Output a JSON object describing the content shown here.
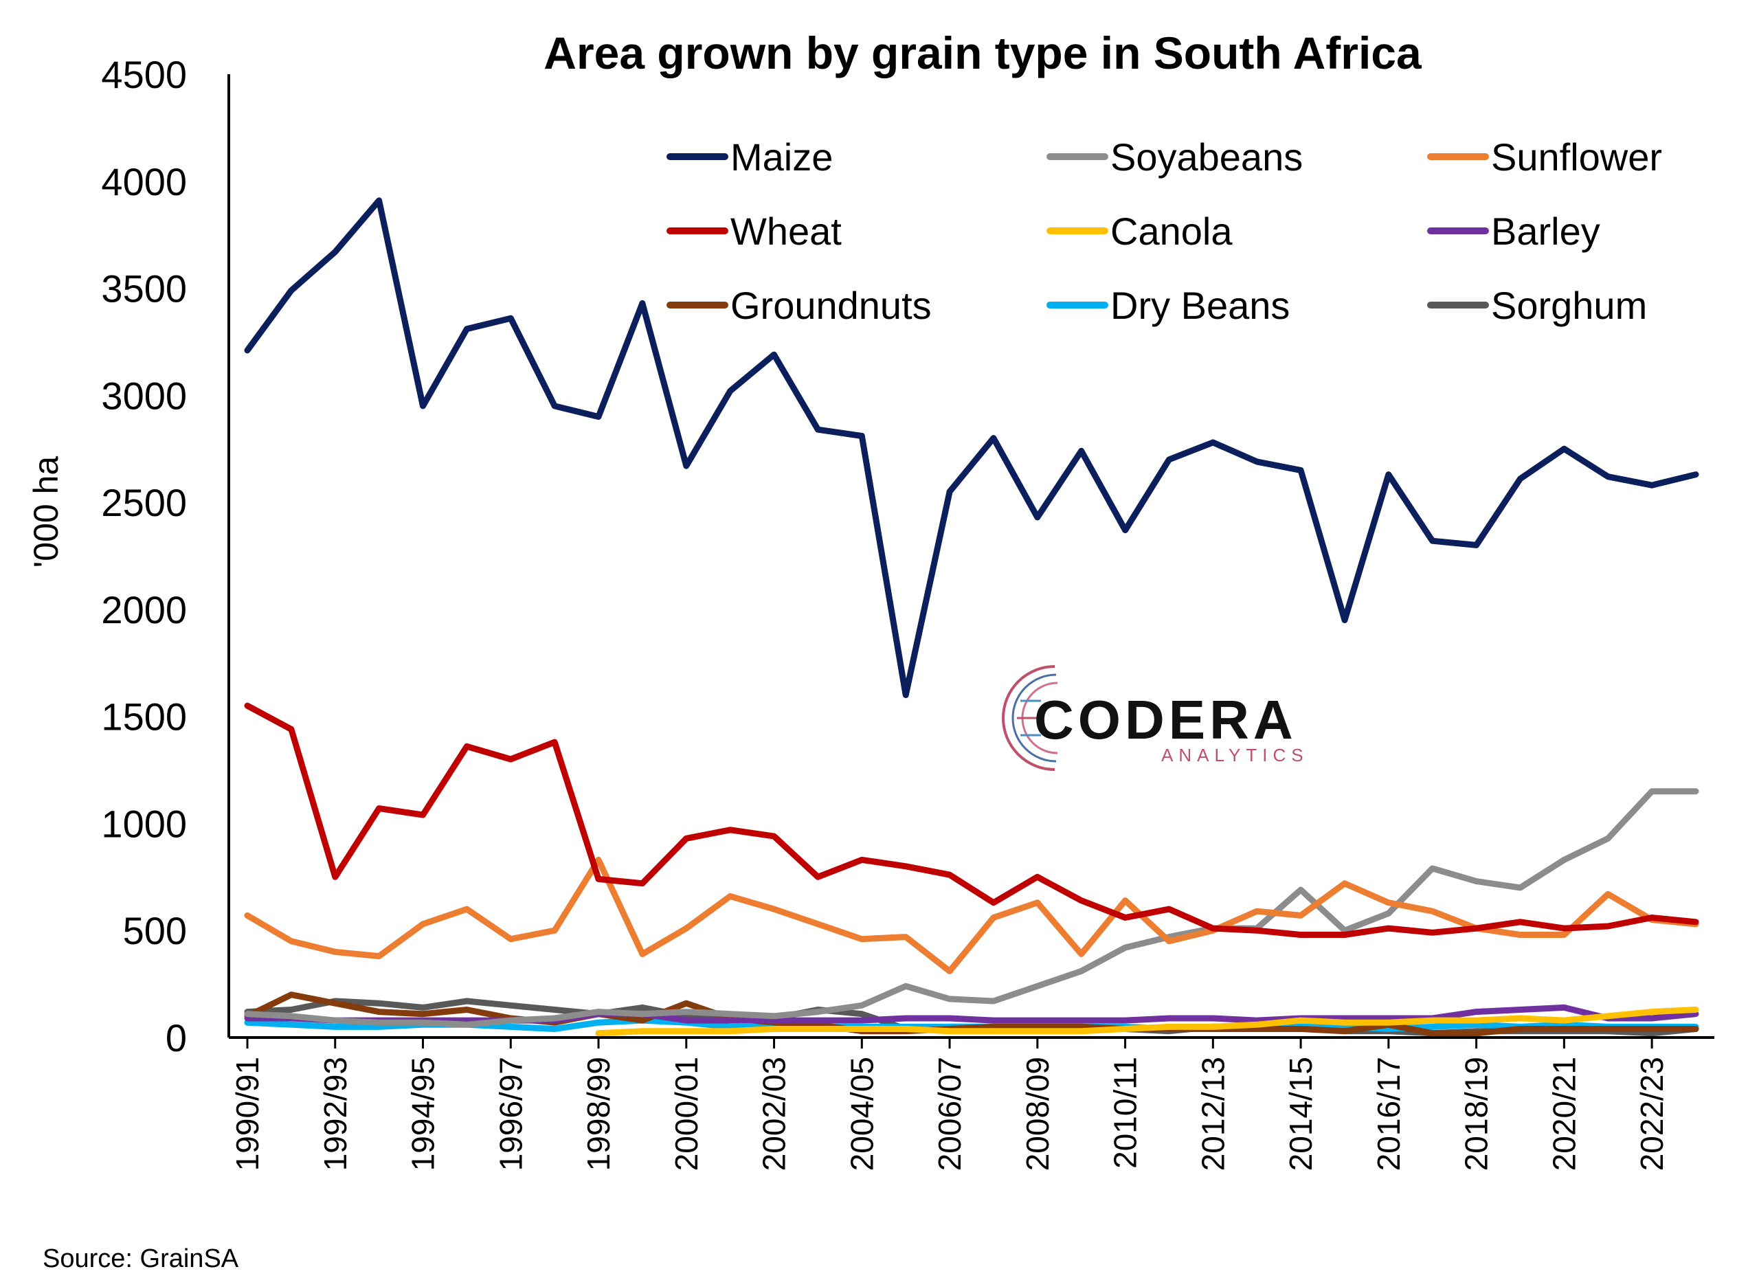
{
  "chart_data": {
    "type": "line",
    "title": "Area grown by grain type in South Africa",
    "ylabel": "'000 ha",
    "xlabel": "",
    "ylim": [
      0,
      4500
    ],
    "yticks": [
      "0",
      "500",
      "1000",
      "1500",
      "2000",
      "2500",
      "3000",
      "3500",
      "4000",
      "4500"
    ],
    "categories": [
      "1990/91",
      "1991/92",
      "1992/93",
      "1993/94",
      "1994/95",
      "1995/96",
      "1996/97",
      "1997/98",
      "1998/99",
      "1999/00",
      "2000/01",
      "2001/02",
      "2002/03",
      "2003/04",
      "2004/05",
      "2005/06",
      "2006/07",
      "2007/08",
      "2008/09",
      "2009/10",
      "2010/11",
      "2011/12",
      "2012/13",
      "2013/14",
      "2014/15",
      "2015/16",
      "2016/17",
      "2017/18",
      "2018/19",
      "2019/20",
      "2020/21",
      "2021/22",
      "2022/23",
      "2023/24"
    ],
    "xtick_labels": [
      "1990/91",
      "1992/93",
      "1994/95",
      "1996/97",
      "1998/99",
      "2000/01",
      "2002/03",
      "2004/05",
      "2006/07",
      "2008/09",
      "2010/11",
      "2012/13",
      "2014/15",
      "2016/17",
      "2018/19",
      "2020/21",
      "2022/23"
    ],
    "grid": false,
    "legend_position": "top-right",
    "series": [
      {
        "name": "Maize",
        "color": "#0b1f5c",
        "values": [
          3210,
          3490,
          3670,
          3910,
          2950,
          3310,
          3360,
          2950,
          2900,
          3430,
          2670,
          3020,
          3190,
          2840,
          2810,
          1600,
          2550,
          2800,
          2430,
          2740,
          2370,
          2700,
          2780,
          2690,
          2650,
          1950,
          2630,
          2320,
          2300,
          2610,
          2750,
          2620,
          2580,
          2630
        ]
      },
      {
        "name": "Soyabeans",
        "color": "#8c8c8c",
        "values": [
          110,
          100,
          80,
          70,
          70,
          60,
          80,
          90,
          120,
          110,
          120,
          110,
          100,
          120,
          150,
          240,
          180,
          170,
          240,
          310,
          420,
          470,
          510,
          510,
          690,
          500,
          580,
          790,
          730,
          700,
          830,
          930,
          1150,
          1150
        ]
      },
      {
        "name": "Sunflower",
        "color": "#ed7d31",
        "values": [
          570,
          450,
          400,
          380,
          530,
          600,
          460,
          500,
          830,
          390,
          510,
          660,
          600,
          530,
          460,
          470,
          310,
          560,
          630,
          390,
          640,
          450,
          500,
          590,
          570,
          720,
          630,
          590,
          510,
          480,
          480,
          670,
          550,
          530
        ]
      },
      {
        "name": "Wheat",
        "color": "#c00000",
        "values": [
          1550,
          1440,
          750,
          1070,
          1040,
          1360,
          1300,
          1380,
          740,
          720,
          930,
          970,
          940,
          750,
          830,
          800,
          760,
          630,
          750,
          640,
          560,
          600,
          510,
          500,
          480,
          480,
          510,
          490,
          510,
          540,
          510,
          520,
          560,
          540
        ]
      },
      {
        "name": "Canola",
        "color": "#ffc000",
        "values": [
          null,
          null,
          null,
          null,
          null,
          null,
          null,
          null,
          20,
          30,
          30,
          30,
          40,
          40,
          40,
          40,
          30,
          30,
          30,
          30,
          40,
          50,
          50,
          60,
          80,
          70,
          70,
          80,
          80,
          90,
          80,
          100,
          120,
          130
        ]
      },
      {
        "name": "Barley",
        "color": "#7030a0",
        "values": [
          90,
          90,
          80,
          80,
          80,
          80,
          80,
          80,
          110,
          110,
          80,
          80,
          80,
          80,
          80,
          90,
          90,
          80,
          80,
          80,
          80,
          90,
          90,
          80,
          90,
          90,
          90,
          90,
          120,
          130,
          140,
          90,
          90,
          110
        ]
      },
      {
        "name": "Groundnuts",
        "color": "#843c0c",
        "values": [
          100,
          200,
          160,
          120,
          110,
          130,
          90,
          70,
          110,
          80,
          160,
          90,
          70,
          60,
          30,
          30,
          40,
          50,
          50,
          50,
          40,
          40,
          40,
          40,
          40,
          30,
          60,
          20,
          20,
          40,
          40,
          40,
          40,
          40
        ]
      },
      {
        "name": "Dry Beans",
        "color": "#00b0f0",
        "values": [
          70,
          60,
          50,
          50,
          60,
          60,
          50,
          40,
          70,
          80,
          70,
          50,
          50,
          50,
          50,
          50,
          50,
          50,
          50,
          50,
          50,
          40,
          50,
          50,
          50,
          50,
          40,
          50,
          60,
          50,
          60,
          50,
          50,
          50
        ]
      },
      {
        "name": "Sorghum",
        "color": "#595959",
        "values": [
          120,
          130,
          170,
          160,
          140,
          170,
          150,
          130,
          110,
          140,
          100,
          90,
          90,
          130,
          110,
          40,
          50,
          50,
          50,
          50,
          40,
          30,
          50,
          50,
          50,
          30,
          30,
          20,
          30,
          30,
          30,
          30,
          20,
          40
        ]
      }
    ],
    "source": "Source: GrainSA"
  },
  "logo": {
    "name": "CODERA",
    "sub": "ANALYTICS"
  }
}
